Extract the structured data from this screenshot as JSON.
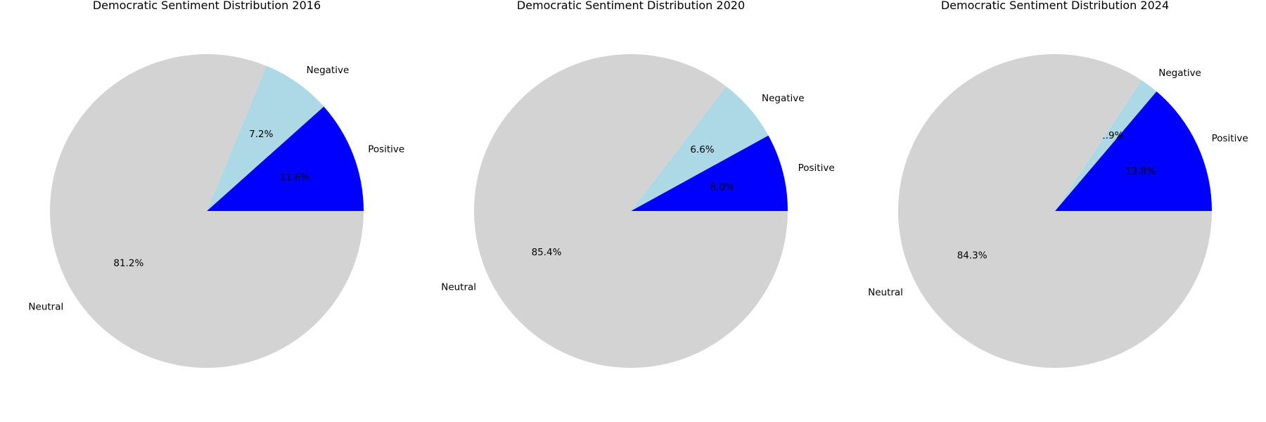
{
  "chart_data": [
    {
      "type": "pie",
      "title": "Democratic Sentiment Distribution 2016",
      "start_angle": 0,
      "direction": "counterclockwise",
      "slices": [
        {
          "label": "Positive",
          "value": 11.6,
          "pct_text": "11.6%",
          "color": "#0000ff"
        },
        {
          "label": "Negative",
          "value": 7.2,
          "pct_text": "7.2%",
          "color": "#add8e6"
        },
        {
          "label": "Neutral",
          "value": 81.2,
          "pct_text": "81.2%",
          "color": "#d3d3d3"
        }
      ]
    },
    {
      "type": "pie",
      "title": "Democratic Sentiment Distribution 2020",
      "start_angle": 0,
      "direction": "counterclockwise",
      "slices": [
        {
          "label": "Positive",
          "value": 8.0,
          "pct_text": "8.0%",
          "color": "#0000ff"
        },
        {
          "label": "Negative",
          "value": 6.6,
          "pct_text": "6.6%",
          "color": "#add8e6"
        },
        {
          "label": "Neutral",
          "value": 85.4,
          "pct_text": "85.4%",
          "color": "#d3d3d3"
        }
      ]
    },
    {
      "type": "pie",
      "title": "Democratic Sentiment Distribution 2024",
      "start_angle": 0,
      "direction": "counterclockwise",
      "slices": [
        {
          "label": "Positive",
          "value": 13.8,
          "pct_text": "13.8%",
          "color": "#0000ff"
        },
        {
          "label": "Negative",
          "value": 1.9,
          "pct_text": "1.9%",
          "color": "#add8e6"
        },
        {
          "label": "Neutral",
          "value": 84.3,
          "pct_text": "84.3%",
          "color": "#d3d3d3"
        }
      ]
    }
  ]
}
